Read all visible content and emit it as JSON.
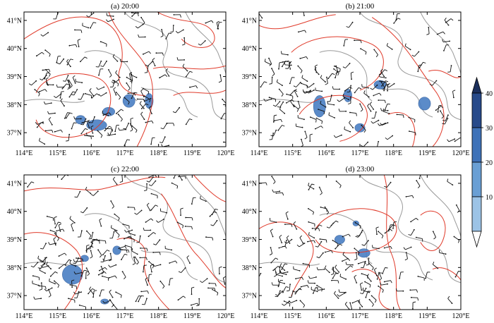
{
  "panels": [
    {
      "title": "(a) 20:00"
    },
    {
      "title": "(b) 21:00"
    },
    {
      "title": "(c) 22:00"
    },
    {
      "title": "(d) 23:00"
    }
  ],
  "axes": {
    "x_ticks": [
      "114°E",
      "115°E",
      "116°E",
      "117°E",
      "118°E",
      "119°E",
      "120°E"
    ],
    "y_ticks": [
      "41°N",
      "40°N",
      "39°N",
      "38°N",
      "37°N"
    ],
    "lon_range": [
      114,
      120
    ],
    "lat_range": [
      36.5,
      41.3
    ]
  },
  "colorbar": {
    "ticks": [
      "40",
      "30",
      "20",
      "10"
    ],
    "levels": [
      10,
      20,
      30,
      40
    ],
    "colors": [
      "#9cc3e6",
      "#6a9fd4",
      "#3f72b8",
      "#274a8a",
      "#1b2f5c"
    ],
    "extend": "both"
  },
  "colors": {
    "contour": "#e03a2a",
    "boundary": "#9a9a9a",
    "wind_barb": "#111111",
    "precip_fill": "#4a7fc4"
  },
  "chart_data": {
    "type": "map",
    "description_fields": [
      "contour-lines",
      "wind-barbs",
      "shaded-precip",
      "province-boundaries"
    ]
  }
}
